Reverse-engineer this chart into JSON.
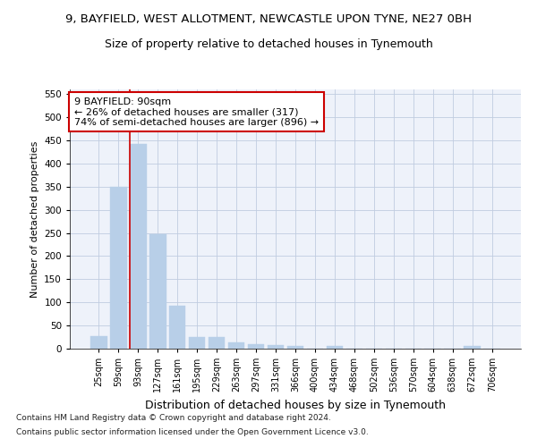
{
  "title": "9, BAYFIELD, WEST ALLOTMENT, NEWCASTLE UPON TYNE, NE27 0BH",
  "subtitle": "Size of property relative to detached houses in Tynemouth",
  "xlabel": "Distribution of detached houses by size in Tynemouth",
  "ylabel": "Number of detached properties",
  "categories": [
    "25sqm",
    "59sqm",
    "93sqm",
    "127sqm",
    "161sqm",
    "195sqm",
    "229sqm",
    "263sqm",
    "297sqm",
    "331sqm",
    "366sqm",
    "400sqm",
    "434sqm",
    "468sqm",
    "502sqm",
    "536sqm",
    "570sqm",
    "604sqm",
    "638sqm",
    "672sqm",
    "706sqm"
  ],
  "values": [
    28,
    350,
    443,
    247,
    92,
    25,
    25,
    14,
    10,
    7,
    6,
    0,
    5,
    0,
    0,
    0,
    0,
    0,
    0,
    5,
    0
  ],
  "bar_color": "#b8cfe8",
  "bar_edgecolor": "#b8cfe8",
  "vline_index": 2,
  "vline_color": "#cc0000",
  "annotation_text": "9 BAYFIELD: 90sqm\n← 26% of detached houses are smaller (317)\n74% of semi-detached houses are larger (896) →",
  "annotation_box_facecolor": "white",
  "annotation_box_edgecolor": "#cc0000",
  "ylim": [
    0,
    560
  ],
  "yticks": [
    0,
    50,
    100,
    150,
    200,
    250,
    300,
    350,
    400,
    450,
    500,
    550
  ],
  "footer1": "Contains HM Land Registry data © Crown copyright and database right 2024.",
  "footer2": "Contains public sector information licensed under the Open Government Licence v3.0.",
  "bg_color": "#eef2fa",
  "title_fontsize": 9.5,
  "subtitle_fontsize": 9,
  "xlabel_fontsize": 9,
  "ylabel_fontsize": 8,
  "tick_fontsize": 7,
  "footer_fontsize": 6.5,
  "grid_color": "#c0cce0",
  "annotation_fontsize": 8
}
